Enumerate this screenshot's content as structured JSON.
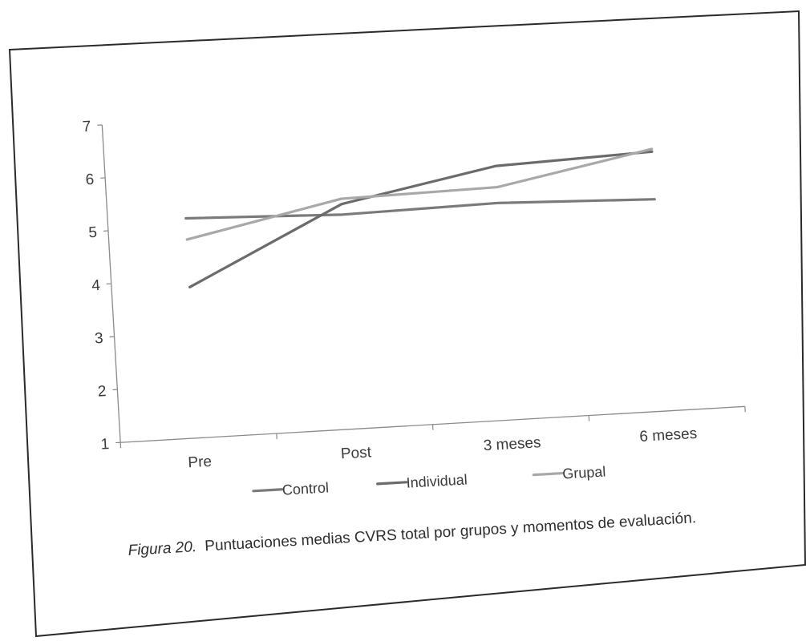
{
  "chart_data": {
    "type": "line",
    "categories": [
      "Pre",
      "Post",
      "3 meses",
      "6 meses"
    ],
    "series": [
      {
        "name": "Control",
        "values": [
          5.15,
          5.05,
          5.1,
          5.0
        ],
        "color": "#7a7a7a"
      },
      {
        "name": "Individual",
        "values": [
          3.85,
          5.25,
          5.8,
          5.9
        ],
        "color": "#6b6b6b"
      },
      {
        "name": "Grupal",
        "values": [
          4.75,
          5.35,
          5.4,
          5.95
        ],
        "color": "#a8a8a8"
      }
    ],
    "ylim": [
      1,
      7
    ],
    "yticks": [
      "1",
      "2",
      "3",
      "4",
      "5",
      "6",
      "7"
    ],
    "grid": false,
    "legend_position": "bottom"
  },
  "caption": {
    "label": "Figura 20.",
    "text": "Puntuaciones medias  CVRS  total  por grupos y  momentos de evaluación."
  }
}
